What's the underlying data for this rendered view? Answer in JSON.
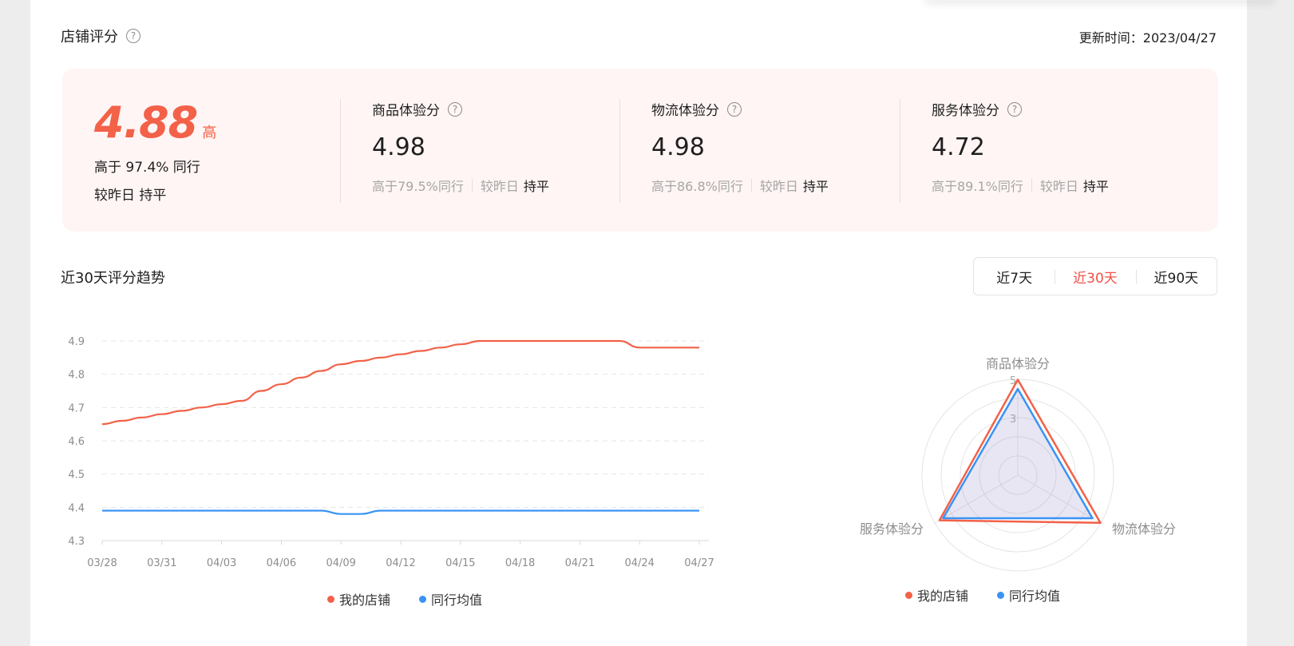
{
  "header": {
    "title": "店铺评分",
    "update_label": "更新时间：",
    "update_value": "2023/04/27"
  },
  "overall": {
    "score": "4.88",
    "level": "高",
    "beat_text": "高于 97.4% 同行",
    "compare_label": "较昨日",
    "compare_value": "持平"
  },
  "sub_scores": [
    {
      "title": "商品体验分",
      "value": "4.98",
      "beat": "高于79.5%同行",
      "compare_label": "较昨日",
      "compare_value": "持平"
    },
    {
      "title": "物流体验分",
      "value": "4.98",
      "beat": "高于86.8%同行",
      "compare_label": "较昨日",
      "compare_value": "持平"
    },
    {
      "title": "服务体验分",
      "value": "4.72",
      "beat": "高于89.1%同行",
      "compare_label": "较昨日",
      "compare_value": "持平"
    }
  ],
  "trend": {
    "title": "近30天评分趋势",
    "ranges": [
      "近7天",
      "近30天",
      "近90天"
    ],
    "active_range": "近30天"
  },
  "colors": {
    "accent": "#f26148",
    "mine": "#f26148",
    "peer": "#3a93f5",
    "active_tab": "#f0504a"
  },
  "chart_data": [
    {
      "type": "line",
      "x": [
        "03/28",
        "03/29",
        "03/30",
        "03/31",
        "04/01",
        "04/02",
        "04/03",
        "04/04",
        "04/05",
        "04/06",
        "04/07",
        "04/08",
        "04/09",
        "04/10",
        "04/11",
        "04/12",
        "04/13",
        "04/14",
        "04/15",
        "04/16",
        "04/17",
        "04/18",
        "04/19",
        "04/20",
        "04/21",
        "04/22",
        "04/23",
        "04/24",
        "04/25",
        "04/26",
        "04/27"
      ],
      "x_ticks": [
        "03/28",
        "03/31",
        "04/03",
        "04/06",
        "04/09",
        "04/12",
        "04/15",
        "04/18",
        "04/21",
        "04/24",
        "04/27"
      ],
      "series": [
        {
          "name": "我的店铺",
          "color": "#f26148",
          "values": [
            4.65,
            4.66,
            4.67,
            4.68,
            4.69,
            4.7,
            4.71,
            4.72,
            4.75,
            4.77,
            4.79,
            4.81,
            4.83,
            4.84,
            4.85,
            4.86,
            4.87,
            4.88,
            4.89,
            4.9,
            4.9,
            4.9,
            4.9,
            4.9,
            4.9,
            4.9,
            4.9,
            4.88,
            4.88,
            4.88,
            4.88
          ]
        },
        {
          "name": "同行均值",
          "color": "#3a93f5",
          "values": [
            4.39,
            4.39,
            4.39,
            4.39,
            4.39,
            4.39,
            4.39,
            4.39,
            4.39,
            4.39,
            4.39,
            4.39,
            4.38,
            4.38,
            4.39,
            4.39,
            4.39,
            4.39,
            4.39,
            4.39,
            4.39,
            4.39,
            4.39,
            4.39,
            4.39,
            4.39,
            4.39,
            4.39,
            4.39,
            4.39,
            4.39
          ]
        }
      ],
      "y_ticks": [
        "4.3",
        "4.4",
        "4.5",
        "4.6",
        "4.7",
        "4.8",
        "4.9"
      ],
      "ylim": [
        4.3,
        4.9
      ],
      "grid": true,
      "legend": "bottom"
    },
    {
      "type": "radar",
      "axes": [
        "商品体验分",
        "物流体验分",
        "服务体验分"
      ],
      "axis_ticks": [
        "3",
        "5"
      ],
      "rmax": 5,
      "series": [
        {
          "name": "我的店铺",
          "color": "#f26148",
          "values": [
            4.98,
            4.98,
            4.72
          ]
        },
        {
          "name": "同行均值",
          "color": "#3a93f5",
          "values": [
            4.5,
            4.5,
            4.5
          ]
        }
      ],
      "legend": "bottom"
    }
  ]
}
